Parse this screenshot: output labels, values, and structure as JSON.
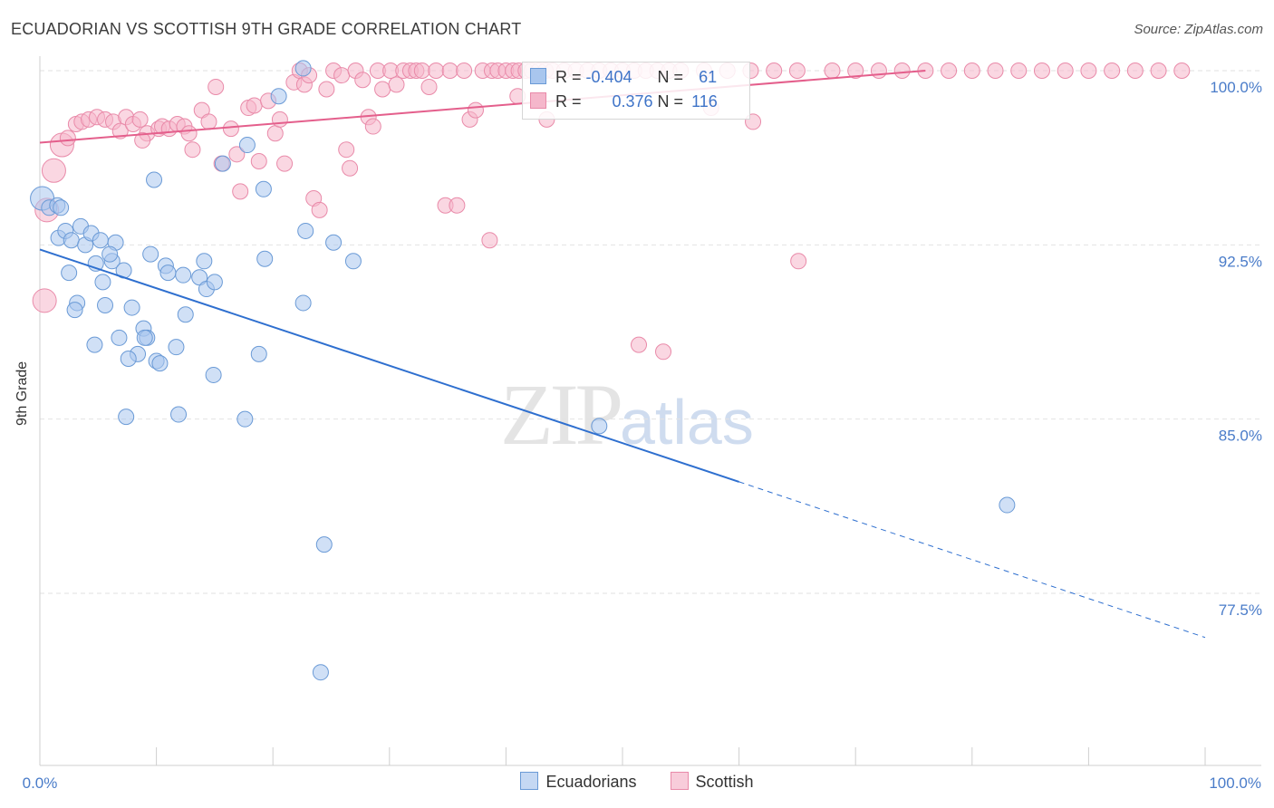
{
  "header": {
    "title": "ECUADORIAN VS SCOTTISH 9TH GRADE CORRELATION CHART",
    "source": "Source: ZipAtlas.com"
  },
  "watermark": {
    "zip": "ZIP",
    "atlas": "atlas"
  },
  "legend": {
    "r_label": "R =",
    "n_label": "N =",
    "ecuadorians": {
      "r": "-0.404",
      "n": "61"
    },
    "scottish": {
      "r": "0.376",
      "n": "116"
    }
  },
  "bottom_legend": {
    "ecuadorians": "Ecuadorians",
    "scottish": "Scottish"
  },
  "colors": {
    "blue_fill": "#a9c6ee",
    "blue_stroke": "#6a9ad6",
    "blue_line": "#2e6fcf",
    "pink_fill": "#f5b7cb",
    "pink_stroke": "#e98aa9",
    "pink_line": "#e45f8c",
    "tick_text": "#4a7cc9"
  },
  "chart_data": {
    "type": "scatter",
    "title": "ECUADORIAN VS SCOTTISH 9TH GRADE CORRELATION CHART",
    "xlabel": "",
    "ylabel": "9th Grade",
    "xlim": [
      0,
      100
    ],
    "ylim": [
      70,
      101
    ],
    "x_tick_labels": [
      "0.0%",
      "100.0%"
    ],
    "y_ticks": [
      77.5,
      85.0,
      92.5,
      100.0
    ],
    "y_tick_labels": [
      "77.5%",
      "85.0%",
      "92.5%",
      "100.0%"
    ],
    "grid": true,
    "legend_placement": "top-center",
    "series": [
      {
        "name": "Ecuadorians",
        "r": -0.404,
        "n": 61,
        "points": [
          [
            0.2,
            94.5,
            "l"
          ],
          [
            0.8,
            94.1
          ],
          [
            1.5,
            94.2
          ],
          [
            1.8,
            94.1
          ],
          [
            1.6,
            92.8
          ],
          [
            2.2,
            93.1
          ],
          [
            2.7,
            92.7
          ],
          [
            3.5,
            93.3
          ],
          [
            3.9,
            92.5
          ],
          [
            4.4,
            93.0
          ],
          [
            5.2,
            92.7
          ],
          [
            6.5,
            92.6
          ],
          [
            4.8,
            91.7
          ],
          [
            6.2,
            91.8
          ],
          [
            6.0,
            92.1
          ],
          [
            7.2,
            91.4
          ],
          [
            2.5,
            91.3
          ],
          [
            5.4,
            90.9
          ],
          [
            3.2,
            90.0
          ],
          [
            3.0,
            89.7
          ],
          [
            5.6,
            89.9
          ],
          [
            7.9,
            89.8
          ],
          [
            9.5,
            92.1
          ],
          [
            10.8,
            91.6
          ],
          [
            11.0,
            91.3
          ],
          [
            12.3,
            91.2
          ],
          [
            13.7,
            91.1
          ],
          [
            14.1,
            91.8
          ],
          [
            14.3,
            90.6
          ],
          [
            15.0,
            90.9
          ],
          [
            8.9,
            88.9
          ],
          [
            9.2,
            88.5
          ],
          [
            9.0,
            88.5
          ],
          [
            6.8,
            88.5
          ],
          [
            4.7,
            88.2
          ],
          [
            8.4,
            87.8
          ],
          [
            7.6,
            87.6
          ],
          [
            10.0,
            87.5
          ],
          [
            10.3,
            87.4
          ],
          [
            11.7,
            88.1
          ],
          [
            12.5,
            89.5
          ],
          [
            14.9,
            86.9
          ],
          [
            7.4,
            85.1
          ],
          [
            11.9,
            85.2
          ],
          [
            17.6,
            85.0
          ],
          [
            18.8,
            87.8
          ],
          [
            19.3,
            91.9
          ],
          [
            22.8,
            93.1
          ],
          [
            22.6,
            90.0
          ],
          [
            25.2,
            92.6
          ],
          [
            26.9,
            91.8
          ],
          [
            9.8,
            95.3
          ],
          [
            19.2,
            94.9
          ],
          [
            17.8,
            96.8
          ],
          [
            15.7,
            96.0
          ],
          [
            22.6,
            100.1
          ],
          [
            48.0,
            84.7
          ],
          [
            83.0,
            81.3
          ],
          [
            24.4,
            79.6
          ],
          [
            24.1,
            74.1
          ],
          [
            20.5,
            98.9
          ]
        ]
      },
      {
        "name": "Scottish",
        "r": 0.376,
        "n": 116,
        "points": [
          [
            0.4,
            90.1,
            "l"
          ],
          [
            0.6,
            94.0,
            "l"
          ],
          [
            1.2,
            95.7,
            "l"
          ],
          [
            1.9,
            96.8,
            "l"
          ],
          [
            2.4,
            97.1
          ],
          [
            3.1,
            97.7
          ],
          [
            3.6,
            97.8
          ],
          [
            4.2,
            97.9
          ],
          [
            4.9,
            98.0
          ],
          [
            5.6,
            97.9
          ],
          [
            6.3,
            97.8
          ],
          [
            6.9,
            97.4
          ],
          [
            7.4,
            98.0
          ],
          [
            8.0,
            97.7
          ],
          [
            8.6,
            97.9
          ],
          [
            9.2,
            97.3
          ],
          [
            8.8,
            97.0
          ],
          [
            10.2,
            97.5
          ],
          [
            10.5,
            97.6
          ],
          [
            11.1,
            97.5
          ],
          [
            11.8,
            97.7
          ],
          [
            12.4,
            97.6
          ],
          [
            12.8,
            97.3
          ],
          [
            13.1,
            96.6
          ],
          [
            13.9,
            98.3
          ],
          [
            14.5,
            97.8
          ],
          [
            15.1,
            99.3
          ],
          [
            15.6,
            96.0
          ],
          [
            16.4,
            97.5
          ],
          [
            16.9,
            96.4
          ],
          [
            17.2,
            94.8
          ],
          [
            17.9,
            98.4
          ],
          [
            18.4,
            98.5
          ],
          [
            18.8,
            96.1
          ],
          [
            19.6,
            98.7
          ],
          [
            20.2,
            97.3
          ],
          [
            20.6,
            97.9
          ],
          [
            21.0,
            96.0
          ],
          [
            21.8,
            99.5
          ],
          [
            22.3,
            100.0
          ],
          [
            22.7,
            99.4
          ],
          [
            23.1,
            99.8
          ],
          [
            23.5,
            94.5
          ],
          [
            24.0,
            94.0
          ],
          [
            24.6,
            99.2
          ],
          [
            25.2,
            100.0
          ],
          [
            25.9,
            99.8
          ],
          [
            26.3,
            96.6
          ],
          [
            26.6,
            95.8
          ],
          [
            27.1,
            100.0
          ],
          [
            27.7,
            99.6
          ],
          [
            28.2,
            98.0
          ],
          [
            28.6,
            97.6
          ],
          [
            29.0,
            100.0
          ],
          [
            29.4,
            99.2
          ],
          [
            30.1,
            100.0
          ],
          [
            30.6,
            99.4
          ],
          [
            31.2,
            100.0
          ],
          [
            31.8,
            100.0
          ],
          [
            32.3,
            100.0
          ],
          [
            32.8,
            100.0
          ],
          [
            33.4,
            99.3
          ],
          [
            34.0,
            100.0
          ],
          [
            34.8,
            94.2
          ],
          [
            35.2,
            100.0
          ],
          [
            35.8,
            94.2
          ],
          [
            36.4,
            100.0
          ],
          [
            36.9,
            97.9
          ],
          [
            37.4,
            98.3
          ],
          [
            38.0,
            100.0
          ],
          [
            38.8,
            100.0
          ],
          [
            39.3,
            100.0
          ],
          [
            40.0,
            100.0
          ],
          [
            40.6,
            100.0
          ],
          [
            41.1,
            100.0
          ],
          [
            41.7,
            100.0
          ],
          [
            42.2,
            100.0
          ],
          [
            42.8,
            100.0
          ],
          [
            43.4,
            100.0
          ],
          [
            44.0,
            100.0
          ],
          [
            45.0,
            100.0
          ],
          [
            46.0,
            100.0
          ],
          [
            47.0,
            100.0
          ],
          [
            48.0,
            100.0
          ],
          [
            49.0,
            100.0
          ],
          [
            50.0,
            100.0
          ],
          [
            51.0,
            100.0
          ],
          [
            52.0,
            100.0
          ],
          [
            53.0,
            100.0
          ],
          [
            54.0,
            100.0
          ],
          [
            55.0,
            100.0
          ],
          [
            57.0,
            100.0
          ],
          [
            59.0,
            100.0
          ],
          [
            61.0,
            100.0
          ],
          [
            63.0,
            100.0
          ],
          [
            65.0,
            100.0
          ],
          [
            68.0,
            100.0
          ],
          [
            70.0,
            100.0
          ],
          [
            72.0,
            100.0
          ],
          [
            74.0,
            100.0
          ],
          [
            76.0,
            100.0
          ],
          [
            78.0,
            100.0
          ],
          [
            80.0,
            100.0
          ],
          [
            82.0,
            100.0
          ],
          [
            84.0,
            100.0
          ],
          [
            86.0,
            100.0
          ],
          [
            88.0,
            100.0
          ],
          [
            90.0,
            100.0
          ],
          [
            92.0,
            100.0
          ],
          [
            94.0,
            100.0
          ],
          [
            96.0,
            100.0
          ],
          [
            98.0,
            100.0
          ],
          [
            38.6,
            92.7
          ],
          [
            41.0,
            98.9
          ],
          [
            43.5,
            97.9
          ],
          [
            51.4,
            88.2
          ],
          [
            53.5,
            87.9
          ],
          [
            57.6,
            98.4
          ],
          [
            61.2,
            97.8
          ],
          [
            65.1,
            91.8
          ]
        ]
      }
    ],
    "trend_lines": [
      {
        "series": "Ecuadorians",
        "x0": 0,
        "y0": 92.3,
        "x1": 60,
        "y1": 82.3,
        "dashed_to_x": 100,
        "dashed_to_y": 75.6
      },
      {
        "series": "Scottish",
        "x0": 0,
        "y0": 96.9,
        "x1": 76,
        "y1": 100.0
      }
    ]
  }
}
